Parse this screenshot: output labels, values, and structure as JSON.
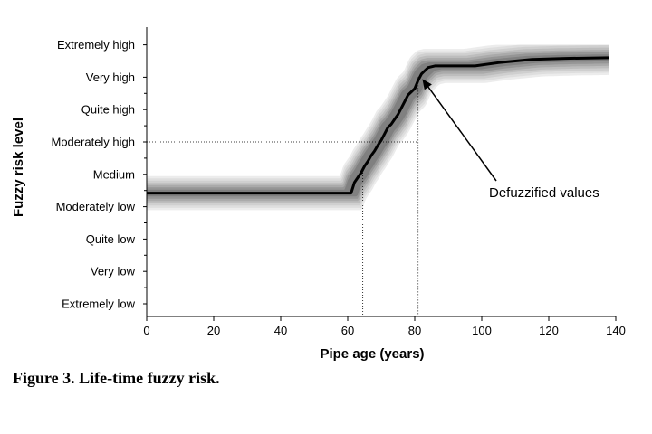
{
  "chart_data": {
    "type": "line",
    "xlabel": "Pipe age (years)",
    "ylabel": "Fuzzy risk level",
    "xlim": [
      0,
      140
    ],
    "x_ticks": [
      0,
      20,
      40,
      60,
      80,
      100,
      120,
      140
    ],
    "y_categories": [
      "Extremely low",
      "Very low",
      "Quite low",
      "Moderately low",
      "Medium",
      "Moderately high",
      "Quite high",
      "Very high",
      "Extremely high"
    ],
    "series": [
      {
        "x": [
          0,
          61,
          62,
          63,
          64,
          65,
          66,
          67,
          68,
          69,
          70,
          71,
          72,
          73,
          74,
          75,
          76,
          77,
          78,
          79,
          80,
          81,
          82,
          83,
          84,
          86,
          90,
          98,
          105,
          115,
          125,
          138
        ],
        "y": [
          3.42,
          3.42,
          3.75,
          3.9,
          4.05,
          4.25,
          4.4,
          4.58,
          4.72,
          4.9,
          5.05,
          5.25,
          5.45,
          5.55,
          5.7,
          5.85,
          6.05,
          6.25,
          6.45,
          6.55,
          6.65,
          6.9,
          7.1,
          7.2,
          7.3,
          7.35,
          7.35,
          7.35,
          7.45,
          7.55,
          7.58,
          7.6
        ]
      }
    ],
    "annotations": [
      {
        "text": "Defuzzified values",
        "points_to": [
          82,
          7.0
        ]
      }
    ],
    "reference_lines": [
      {
        "from": [
          0,
          5.0
        ],
        "to": [
          81,
          5.0
        ]
      },
      {
        "x": 64.5,
        "y_top": 4.05
      },
      {
        "x": 81,
        "y_top": 7.0
      }
    ]
  },
  "caption": "Figure 3.  Life-time fuzzy risk."
}
